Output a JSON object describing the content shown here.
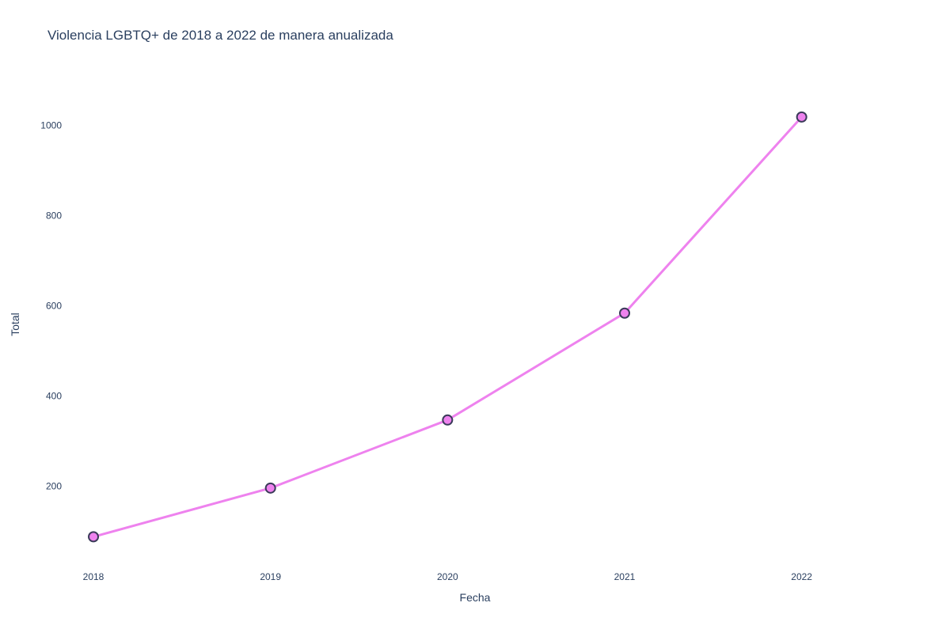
{
  "chart_data": {
    "type": "line",
    "title": "Violencia LGBTQ+ de 2018 a 2022 de manera anualizada",
    "xlabel": "Fecha",
    "ylabel": "Total",
    "categories": [
      "2018",
      "2019",
      "2020",
      "2021",
      "2022"
    ],
    "x": [
      2018,
      2019,
      2020,
      2021,
      2022
    ],
    "series": [
      {
        "values": [
          88,
          196,
          347,
          584,
          1019
        ]
      }
    ],
    "yticks": [
      200,
      400,
      600,
      800,
      1000
    ],
    "ylim": [
      29,
      1103
    ],
    "xlim": [
      2017.83,
      2022.48
    ],
    "grid": false,
    "legend": "none",
    "colors": {
      "line": "#ee82ee",
      "marker_fill": "#ee82ee",
      "marker_edge": "#3b3b5a",
      "text": "#2a3f5f"
    }
  }
}
